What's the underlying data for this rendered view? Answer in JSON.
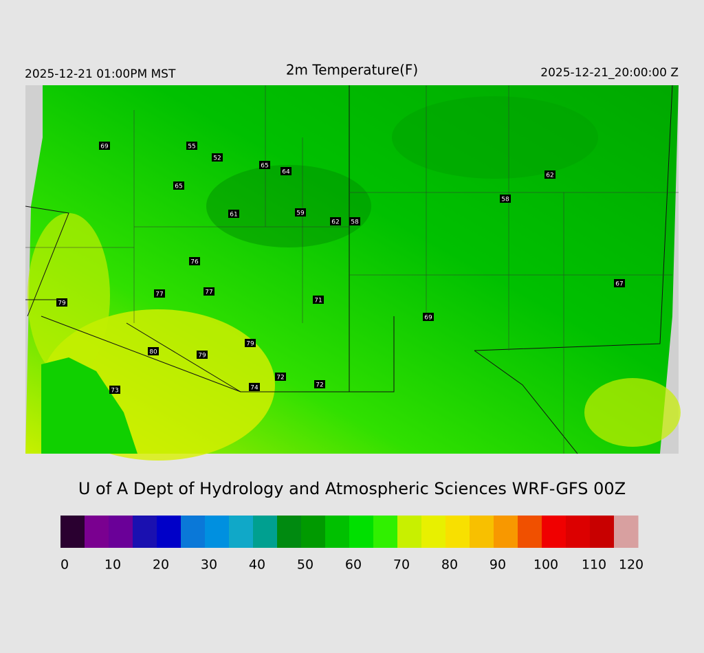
{
  "header": {
    "left": "2025-12-21 01:00PM MST",
    "title": "2m Temperature(F)",
    "right": "2025-12-21_20:00:00 Z"
  },
  "stations": [
    69,
    55,
    52,
    65,
    64,
    65,
    61,
    59,
    62,
    58,
    62,
    58,
    76,
    77,
    77,
    79,
    71,
    69,
    67,
    80,
    79,
    79,
    72,
    74,
    72,
    73
  ],
  "credit": "U of A Dept of Hydrology and Atmospheric Sciences WRF-GFS 00Z",
  "colorbar": {
    "range": [
      0,
      120
    ],
    "ticks": [
      0,
      10,
      20,
      30,
      40,
      50,
      60,
      70,
      80,
      90,
      100,
      110,
      120
    ],
    "colors": [
      "#2a0030",
      "#7a0090",
      "#6a0098",
      "#1a10b0",
      "#0000c8",
      "#0a78d8",
      "#0090e0",
      "#10a8c8",
      "#00a090",
      "#008a10",
      "#009a00",
      "#00c000",
      "#00e000",
      "#30f000",
      "#c8f000",
      "#e8f000",
      "#f8e000",
      "#f8c000",
      "#f89800",
      "#f05000",
      "#f00000",
      "#dc0000",
      "#c80000",
      "#d8a0a0"
    ]
  }
}
